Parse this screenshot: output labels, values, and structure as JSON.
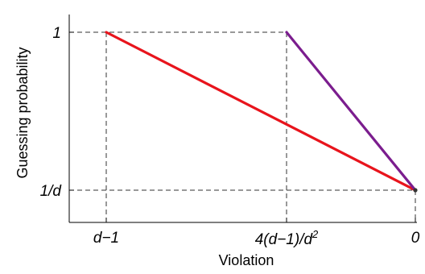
{
  "chart_data": {
    "type": "line",
    "title": "",
    "xlabel": "Violation",
    "ylabel": "Guessing probability",
    "x_tick_labels": [
      {
        "text": "d−1"
      },
      {
        "text": "4(d−1)/d",
        "sup": "2"
      },
      {
        "text": "0"
      }
    ],
    "y_tick_labels": [
      {
        "text": "1"
      },
      {
        "text": "1/d"
      }
    ],
    "series": [
      {
        "color": "#e8141c",
        "points": [
          {
            "x": "d−1",
            "y": "1"
          },
          {
            "x": "0",
            "y": "1/d"
          }
        ]
      },
      {
        "color": "#7b1d8e",
        "points": [
          {
            "x": "4(d−1)/d²",
            "y": "1"
          },
          {
            "x": "0",
            "y": "1/d"
          }
        ]
      }
    ],
    "guide_lines": "dashed",
    "grid": false,
    "legend": "none"
  }
}
